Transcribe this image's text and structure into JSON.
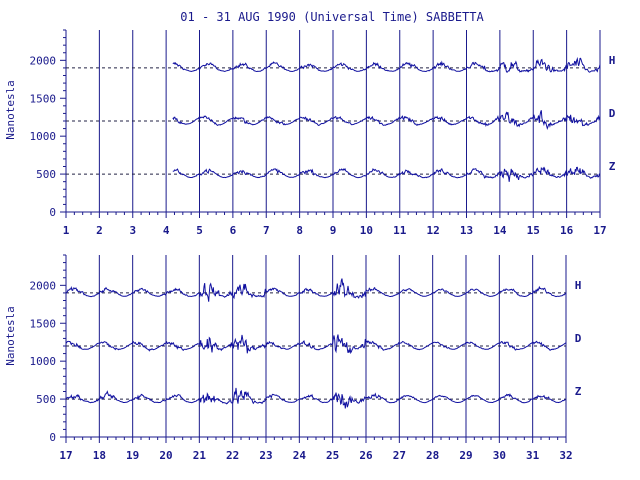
{
  "title": "01 - 31 AUG 1990 (Universal Time) SABBETTA",
  "ylabel": "Nanotesla",
  "colors": {
    "axis": "#1a1a8c",
    "trace": "#1010a0",
    "text": "#1a1a8c",
    "background": "#ffffff"
  },
  "chart_data": [
    {
      "type": "line",
      "panel": "top",
      "x_ticks": [
        "1",
        "2",
        "3",
        "4",
        "5",
        "6",
        "7",
        "8",
        "9",
        "10",
        "11",
        "12",
        "13",
        "14",
        "15",
        "16",
        "17"
      ],
      "xlim": [
        1,
        17
      ],
      "y_ticks": [
        "0",
        "500",
        "1000",
        "1500",
        "2000"
      ],
      "ylim": [
        0,
        2400
      ],
      "grid": true,
      "series": [
        {
          "name": "H",
          "baseline": 1900,
          "start_day": 4.2,
          "end_day": 17.0
        },
        {
          "name": "D",
          "baseline": 1200,
          "start_day": 4.2,
          "end_day": 17.0
        },
        {
          "name": "Z",
          "baseline": 500,
          "start_day": 4.2,
          "end_day": 17.0
        }
      ]
    },
    {
      "type": "line",
      "panel": "bottom",
      "x_ticks": [
        "17",
        "18",
        "19",
        "20",
        "21",
        "22",
        "23",
        "24",
        "25",
        "26",
        "27",
        "28",
        "29",
        "30",
        "31",
        "32"
      ],
      "xlim": [
        17,
        32
      ],
      "y_ticks": [
        "0",
        "500",
        "1000",
        "1500",
        "2000"
      ],
      "ylim": [
        0,
        2400
      ],
      "grid": true,
      "series": [
        {
          "name": "H",
          "baseline": 1900
        },
        {
          "name": "D",
          "baseline": 1200
        },
        {
          "name": "Z",
          "baseline": 500
        }
      ]
    }
  ]
}
